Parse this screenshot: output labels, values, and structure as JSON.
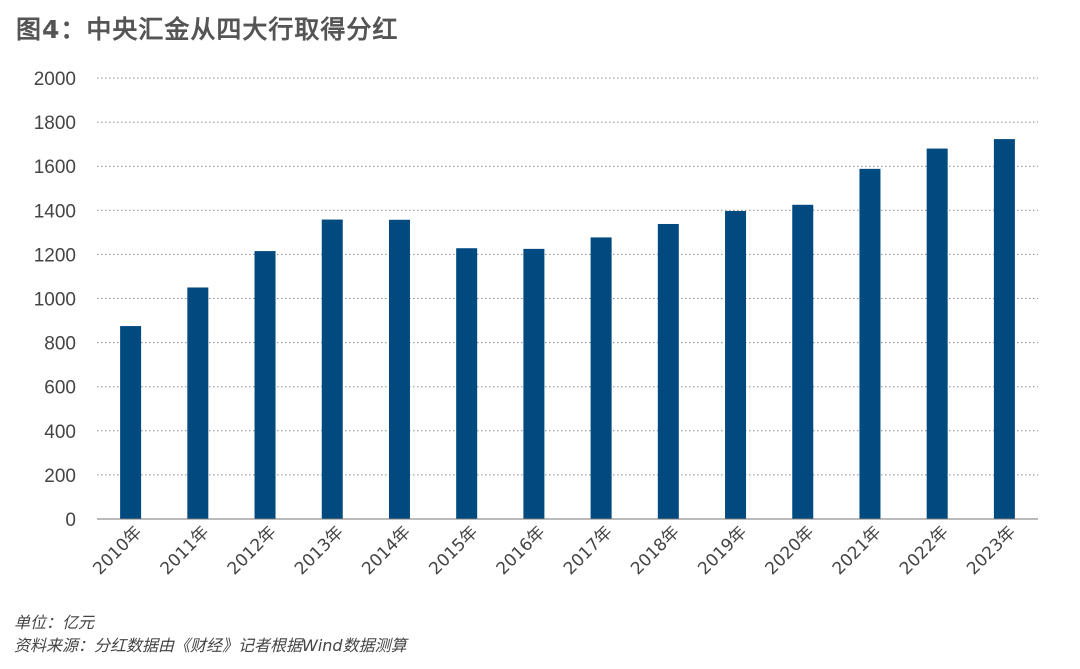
{
  "title": "图4：中央汇金从四大行取得分红",
  "notes": {
    "unit": "单位：亿元",
    "source": "资料来源：分红数据由《财经》记者根据Wind数据测算"
  },
  "colors": {
    "bar": "#004a80",
    "grid": "#8a8a8a",
    "axis": "#777777"
  },
  "chart_data": {
    "type": "bar",
    "title": "图4：中央汇金从四大行取得分红",
    "xlabel": "",
    "ylabel": "",
    "ylim": [
      0,
      2000
    ],
    "yticks": [
      0,
      200,
      400,
      600,
      800,
      1000,
      1200,
      1400,
      1600,
      1800,
      2000
    ],
    "grid": "horizontal dotted",
    "legend": "none",
    "categories": [
      "2010年",
      "2011年",
      "2012年",
      "2013年",
      "2014年",
      "2015年",
      "2016年",
      "2017年",
      "2018年",
      "2019年",
      "2020年",
      "2021年",
      "2022年",
      "2023年"
    ],
    "values": [
      875,
      1050,
      1215,
      1358,
      1357,
      1228,
      1225,
      1277,
      1338,
      1397,
      1425,
      1588,
      1680,
      1723
    ]
  }
}
